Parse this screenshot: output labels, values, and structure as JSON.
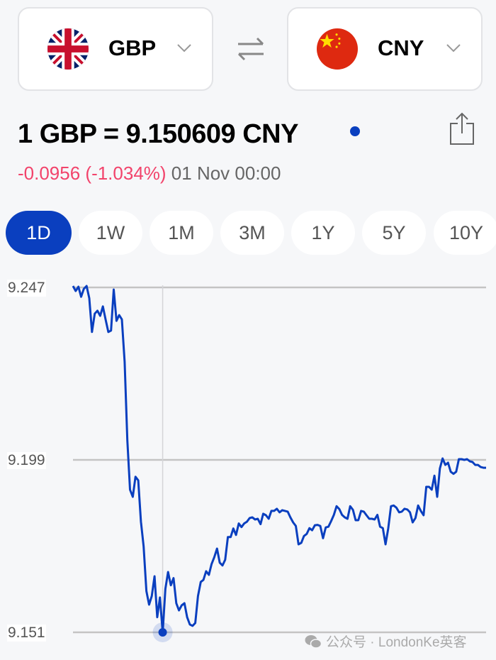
{
  "from_currency": {
    "code": "GBP",
    "flag": "uk-flag-icon"
  },
  "to_currency": {
    "code": "CNY",
    "flag": "china-flag-icon"
  },
  "swap_icon": "swap-arrows-icon",
  "rate_text": "1 GBP = 9.150609 CNY",
  "change_text": "-0.0956 (-1.034%)",
  "timestamp": "01 Nov 00:00",
  "colors": {
    "accent": "#0a3fbf",
    "negative": "#f2436b",
    "line": "#0a3fbf"
  },
  "tabs": [
    {
      "label": "1D",
      "active": true
    },
    {
      "label": "1W"
    },
    {
      "label": "1M"
    },
    {
      "label": "3M"
    },
    {
      "label": "1Y"
    },
    {
      "label": "5Y"
    },
    {
      "label": "10Y"
    }
  ],
  "watermark": "公众号 · LondonKe英客",
  "chart_data": {
    "type": "line",
    "title": "",
    "xlabel": "",
    "ylabel": "",
    "ylim": [
      9.151,
      9.247
    ],
    "yticks": [
      "9.247",
      "9.199",
      "9.151"
    ],
    "grid": true,
    "highlight": "minimum point marked with crosshair",
    "values": [
      9.2474,
      9.246,
      9.2472,
      9.2444,
      9.2466,
      9.2474,
      9.244,
      9.2346,
      9.2397,
      9.2405,
      9.2391,
      9.2417,
      9.2381,
      9.2346,
      9.235,
      9.2464,
      9.2377,
      9.2393,
      9.2381,
      9.2263,
      9.2045,
      9.1907,
      9.1887,
      9.1943,
      9.1933,
      9.1818,
      9.1749,
      9.1625,
      9.1587,
      9.1611,
      9.1666,
      9.1552,
      9.1607,
      9.151,
      9.1631,
      9.1678,
      9.1641,
      9.1661,
      9.1591,
      9.1571,
      9.1585,
      9.1591,
      9.1552,
      9.1532,
      9.1528,
      9.1536,
      9.1611,
      9.165,
      9.1656,
      9.168,
      9.167,
      9.17,
      9.1719,
      9.1743,
      9.1704,
      9.1696,
      9.1712,
      9.1775,
      9.1775,
      9.1799,
      9.1781,
      9.1813,
      9.1803,
      9.1813,
      9.1818,
      9.1828,
      9.183,
      9.1824,
      9.1826,
      9.1811,
      9.184,
      9.1836,
      9.1826,
      9.1848,
      9.1848,
      9.1854,
      9.1844,
      9.185,
      9.1848,
      9.1846,
      9.183,
      9.1816,
      9.1806,
      9.1755,
      9.1759,
      9.1778,
      9.1784,
      9.18,
      9.1794,
      9.1808,
      9.1809,
      9.1806,
      9.1772,
      9.1802,
      9.1804,
      9.182,
      9.1837,
      9.1861,
      9.1853,
      9.1837,
      9.183,
      9.1826,
      9.1861,
      9.1851,
      9.1822,
      9.1822,
      9.1848,
      9.1846,
      9.1836,
      9.1826,
      9.1826,
      9.1824,
      9.1837,
      9.1804,
      9.18,
      9.1755,
      9.1799,
      9.1861,
      9.1863,
      9.1857,
      9.1844,
      9.1846,
      9.1854,
      9.1852,
      9.1844,
      9.1816,
      9.1828,
      9.1863,
      9.1848,
      9.1836,
      9.1915,
      9.1915,
      9.1907,
      9.1946,
      9.1887,
      9.1966,
      9.1994,
      9.1976,
      9.1982,
      9.1957,
      9.1951,
      9.1957,
      9.1992,
      9.1992,
      9.199,
      9.1992,
      9.1986,
      9.1984,
      9.1976,
      9.1976,
      9.197,
      9.1968,
      9.1968
    ]
  }
}
